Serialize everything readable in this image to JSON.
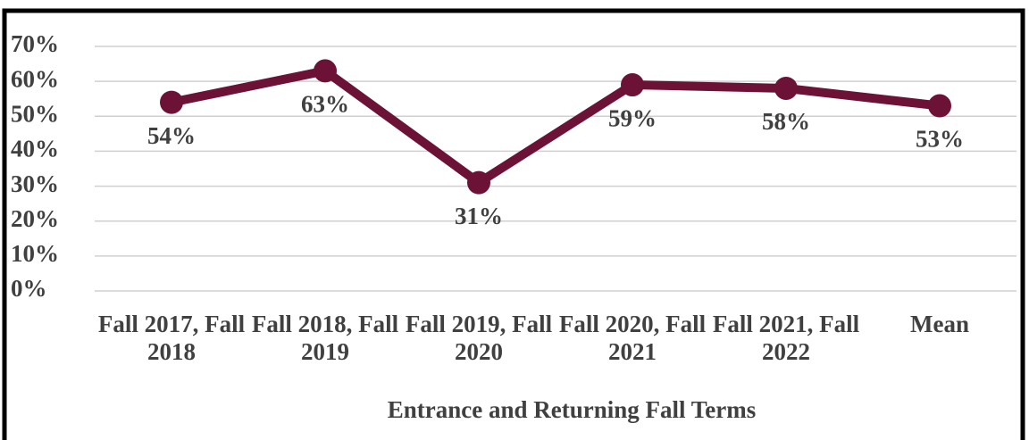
{
  "chart_data": {
    "type": "line",
    "categories": [
      "Fall 2017, Fall 2018",
      "Fall 2018, Fall 2019",
      "Fall 2019, Fall 2020",
      "Fall 2020, Fall 2021",
      "Fall 2021, Fall 2022",
      "Mean"
    ],
    "values": [
      54,
      63,
      31,
      59,
      58,
      53
    ],
    "value_labels": [
      "54%",
      "63%",
      "31%",
      "59%",
      "58%",
      "53%"
    ],
    "color": "#6b1236",
    "x_label": "Entrance and Returning Fall Terms",
    "ylim": [
      0,
      70
    ],
    "yticks": [
      {
        "value": 0,
        "label": "0%"
      },
      {
        "value": 10,
        "label": "10%"
      },
      {
        "value": 20,
        "label": "20%"
      },
      {
        "value": 30,
        "label": "30%"
      },
      {
        "value": 40,
        "label": "40%"
      },
      {
        "value": 50,
        "label": "50%"
      },
      {
        "value": 60,
        "label": "60%"
      },
      {
        "value": 70,
        "label": "70%"
      }
    ],
    "grid": true
  }
}
